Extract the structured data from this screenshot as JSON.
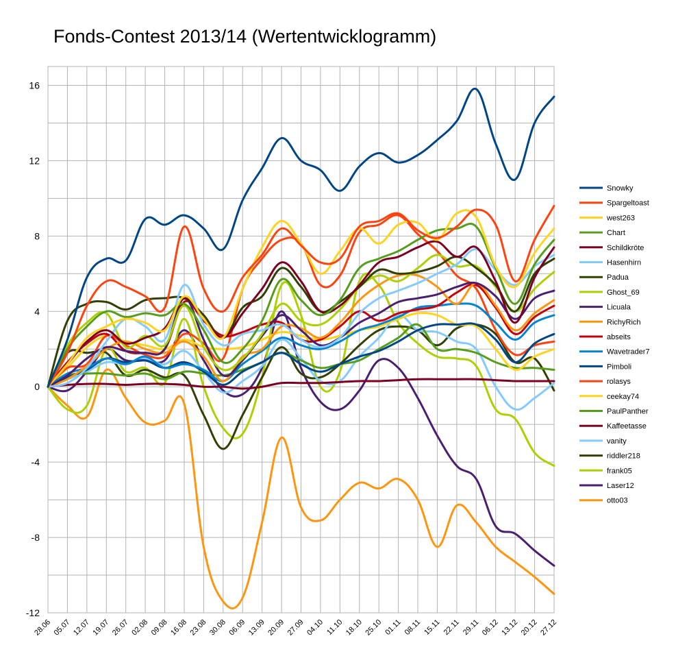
{
  "chart_data": {
    "type": "line",
    "title": "Fonds-Contest 2013/14 (Wertentwicklogramm)",
    "xlabel": "",
    "ylabel": "",
    "ylim": [
      -12,
      17
    ],
    "yticks": [
      16,
      12,
      8,
      4,
      0,
      -4,
      -8,
      -12
    ],
    "grid": true,
    "legend": "right",
    "categories": [
      "28.06",
      "05.07",
      "12.07",
      "19.07",
      "26.07",
      "02.08",
      "09.08",
      "16.08",
      "23.08",
      "30.08",
      "06.09",
      "13.09",
      "20.09",
      "27.09",
      "04.10",
      "11.10",
      "18.10",
      "25.10",
      "01.11",
      "08.11",
      "15.11",
      "22.11",
      "29.11",
      "06.12",
      "13.12",
      "20.12",
      "27.12"
    ],
    "series": [
      {
        "name": "Snowky",
        "color": "#004586",
        "values": [
          0,
          2.5,
          5.8,
          6.8,
          6.7,
          8.9,
          8.6,
          9.1,
          8.4,
          7.3,
          9.9,
          11.6,
          13.2,
          12.0,
          11.5,
          10.4,
          11.7,
          12.4,
          11.9,
          12.3,
          13.1,
          14.1,
          15.8,
          12.9,
          11.0,
          14.0,
          15.4
        ]
      },
      {
        "name": "Spargeltoast",
        "color": "#ff420e",
        "values": [
          0,
          1.8,
          4.3,
          5.6,
          5.3,
          4.8,
          4.2,
          8.5,
          5.2,
          4.0,
          5.8,
          7.0,
          8.4,
          7.5,
          6.6,
          6.8,
          8.5,
          8.8,
          9.2,
          8.3,
          7.9,
          8.5,
          9.4,
          8.6,
          5.6,
          7.8,
          9.6
        ]
      },
      {
        "name": "west263",
        "color": "#ffd320",
        "values": [
          0,
          1.2,
          2.6,
          3.2,
          3.6,
          3.4,
          3.0,
          4.8,
          3.6,
          2.6,
          5.2,
          7.4,
          8.8,
          7.6,
          6.0,
          7.2,
          8.4,
          7.6,
          8.6,
          8.7,
          7.8,
          9.2,
          9.0,
          6.4,
          5.3,
          7.1,
          8.4
        ]
      },
      {
        "name": "Chart",
        "color": "#579d1c",
        "values": [
          0,
          2.0,
          3.2,
          4.0,
          3.7,
          3.9,
          3.8,
          4.4,
          3.0,
          1.3,
          2.0,
          3.5,
          5.7,
          4.6,
          3.8,
          4.6,
          6.3,
          6.8,
          7.2,
          7.8,
          8.3,
          8.4,
          8.5,
          6.3,
          4.4,
          6.5,
          7.8
        ]
      },
      {
        "name": "Schildkröte",
        "color": "#7e0021",
        "values": [
          0,
          1.2,
          2.4,
          3.0,
          2.3,
          2.6,
          3.1,
          4.7,
          3.6,
          2.6,
          3.9,
          5.2,
          6.6,
          5.6,
          4.0,
          4.3,
          5.4,
          6.6,
          6.9,
          7.4,
          7.7,
          6.9,
          7.4,
          5.6,
          3.4,
          5.8,
          7.4
        ]
      },
      {
        "name": "Hasenhirn",
        "color": "#83caff",
        "values": [
          0,
          0.2,
          1.0,
          2.4,
          3.6,
          3.2,
          2.5,
          5.4,
          3.3,
          2.2,
          2.8,
          3.0,
          3.3,
          2.5,
          2.1,
          2.6,
          3.9,
          4.7,
          5.1,
          5.5,
          6.0,
          6.5,
          7.3,
          6.2,
          5.4,
          6.4,
          7.0
        ]
      },
      {
        "name": "Padua",
        "color": "#314004",
        "values": [
          0,
          3.5,
          4.4,
          4.5,
          4.1,
          4.6,
          4.7,
          4.7,
          3.8,
          2.6,
          4.2,
          4.8,
          6.3,
          5.3,
          4.0,
          4.5,
          5.3,
          6.2,
          6.0,
          6.1,
          6.4,
          6.9,
          6.3,
          5.4,
          4.0,
          6.0,
          6.8
        ]
      },
      {
        "name": "Ghost_69",
        "color": "#aecf00",
        "values": [
          0,
          2.2,
          3.4,
          3.9,
          2.1,
          2.7,
          2.2,
          4.3,
          2.1,
          0.9,
          1.5,
          2.8,
          4.4,
          3.5,
          3.3,
          4.1,
          5.3,
          5.9,
          5.6,
          6.3,
          7.0,
          6.4,
          6.4,
          5.3,
          4.0,
          5.2,
          6.1
        ]
      },
      {
        "name": "Licuala",
        "color": "#4b1f6f",
        "values": [
          0,
          0.6,
          1.5,
          2.1,
          1.9,
          1.8,
          2.0,
          4.7,
          2.5,
          0.6,
          1.4,
          2.7,
          3.8,
          3.0,
          2.2,
          2.6,
          3.4,
          3.9,
          4.5,
          4.7,
          4.9,
          5.3,
          5.5,
          4.8,
          3.6,
          4.7,
          5.1
        ]
      },
      {
        "name": "RichyRich",
        "color": "#ff950e",
        "values": [
          0,
          0.4,
          1.1,
          2.0,
          2.4,
          2.0,
          1.8,
          2.4,
          1.6,
          0.3,
          1.6,
          2.0,
          3.2,
          3.1,
          2.6,
          3.4,
          4.6,
          5.4,
          5.9,
          5.9,
          5.3,
          4.4,
          5.5,
          4.3,
          3.0,
          3.9,
          4.6
        ]
      },
      {
        "name": "abseits",
        "color": "#c5000b",
        "values": [
          0,
          1.3,
          2.3,
          2.8,
          1.9,
          1.8,
          2.0,
          4.5,
          3.5,
          2.7,
          2.9,
          3.3,
          3.4,
          2.5,
          2.5,
          3.2,
          4.0,
          3.5,
          3.9,
          4.1,
          4.3,
          5.0,
          5.4,
          4.2,
          2.8,
          3.7,
          4.3
        ]
      },
      {
        "name": "Wavetrader7",
        "color": "#0084d1",
        "values": [
          0,
          0.7,
          1.0,
          1.5,
          1.2,
          1.6,
          1.0,
          1.2,
          0.9,
          0.3,
          1.2,
          1.9,
          2.6,
          2.2,
          2.0,
          2.4,
          3.0,
          3.3,
          3.7,
          4.2,
          4.3,
          4.4,
          4.3,
          3.4,
          2.5,
          3.4,
          3.8
        ]
      },
      {
        "name": "Pimboli",
        "color": "#004586",
        "values": [
          0,
          0.5,
          0.9,
          1.5,
          1.3,
          1.4,
          1.0,
          1.3,
          0.8,
          0.1,
          0.8,
          1.3,
          1.8,
          1.2,
          0.8,
          1.2,
          1.6,
          1.9,
          2.4,
          3.0,
          3.3,
          3.3,
          3.3,
          2.5,
          1.3,
          2.3,
          2.8
        ]
      },
      {
        "name": "rolasys",
        "color": "#ff420e",
        "values": [
          0,
          1.0,
          1.2,
          2.7,
          2.2,
          1.7,
          1.6,
          2.8,
          2.3,
          1.5,
          5.2,
          6.8,
          7.8,
          7.6,
          5.4,
          5.9,
          8.2,
          8.6,
          9.1,
          8.1,
          7.2,
          5.9,
          5.2,
          3.0,
          1.7,
          2.2,
          2.4
        ]
      },
      {
        "name": "ceekay74",
        "color": "#ffd320",
        "values": [
          0,
          1.0,
          2.1,
          2.7,
          2.4,
          2.2,
          2.0,
          2.5,
          2.1,
          2.0,
          2.1,
          2.5,
          2.9,
          2.7,
          2.5,
          2.7,
          3.0,
          3.2,
          3.6,
          3.9,
          3.8,
          3.3,
          3.2,
          2.0,
          0.9,
          1.6,
          2.0
        ]
      },
      {
        "name": "PaulPanther",
        "color": "#579d1c",
        "values": [
          0,
          0.6,
          0.7,
          0.7,
          0.6,
          0.7,
          0.4,
          0.8,
          0.7,
          0.6,
          0.9,
          1.3,
          1.8,
          1.4,
          1.0,
          1.2,
          1.4,
          2.0,
          2.6,
          3.3,
          2.0,
          2.0,
          1.8,
          1.3,
          1.0,
          1.0,
          0.9
        ]
      },
      {
        "name": "Kaffeetasse",
        "color": "#7e0021",
        "values": [
          0,
          0.1,
          0.15,
          0.15,
          0.1,
          0.15,
          0.15,
          0.1,
          0.0,
          0.0,
          -0.1,
          0.0,
          0.2,
          0.2,
          0.2,
          0.25,
          0.3,
          0.3,
          0.35,
          0.4,
          0.4,
          0.4,
          0.4,
          0.35,
          0.3,
          0.3,
          0.3
        ]
      },
      {
        "name": "vanity",
        "color": "#83caff",
        "values": [
          0,
          0.4,
          0.8,
          1.3,
          1.2,
          1.5,
          1.2,
          1.9,
          0.8,
          -0.3,
          0.3,
          1.1,
          2.5,
          1.5,
          0.3,
          0.3,
          1.6,
          2.6,
          3.8,
          3.0,
          2.9,
          2.4,
          2.0,
          0.0,
          -1.2,
          -0.6,
          0.2
        ]
      },
      {
        "name": "riddler218",
        "color": "#314004",
        "values": [
          0,
          1.8,
          1.8,
          1.8,
          0.6,
          0.9,
          0.5,
          0.6,
          -1.5,
          -3.3,
          -1.5,
          0.5,
          2.1,
          0.7,
          0.5,
          1.2,
          2.2,
          3.0,
          3.2,
          3.0,
          2.2,
          3.1,
          3.3,
          2.8,
          1.3,
          1.5,
          -0.2
        ]
      },
      {
        "name": "frank05",
        "color": "#aecf00",
        "values": [
          0,
          -1.2,
          -1.0,
          2.0,
          0.8,
          1.0,
          0.2,
          3.6,
          0.0,
          -2.2,
          -2.5,
          0.5,
          5.4,
          3.8,
          0.0,
          0.8,
          5.6,
          5.4,
          3.4,
          2.3,
          1.6,
          1.5,
          1.1,
          -1.2,
          -1.7,
          -3.5,
          -4.2
        ]
      },
      {
        "name": "Laser12",
        "color": "#4b1f6f",
        "values": [
          0,
          -0.2,
          0.8,
          2.0,
          1.4,
          1.4,
          1.4,
          3.0,
          1.4,
          -0.2,
          -0.4,
          1.0,
          4.0,
          1.0,
          -0.8,
          -1.2,
          -0.2,
          1.4,
          1.0,
          -0.6,
          -2.6,
          -4.2,
          -4.9,
          -7.4,
          -7.8,
          -8.7,
          -9.5
        ]
      },
      {
        "name": "otto03",
        "color": "#ff950e",
        "values": [
          0,
          -1.0,
          -1.6,
          0.9,
          -0.6,
          -1.9,
          -1.8,
          -0.9,
          -8.5,
          -11.4,
          -11.2,
          -7.2,
          -2.7,
          -6.4,
          -7.1,
          -6.0,
          -5.1,
          -5.4,
          -4.9,
          -6.0,
          -8.5,
          -6.3,
          -7.2,
          -8.5,
          -9.3,
          -10.1,
          -11.0
        ]
      }
    ]
  }
}
